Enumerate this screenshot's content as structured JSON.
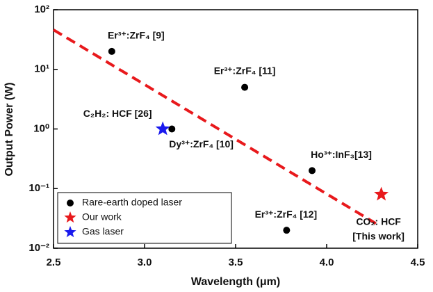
{
  "chart_data": {
    "type": "scatter",
    "x_label": "Wavelength (μm)",
    "y_label": "Output Power (W)",
    "xlim": [
      2.5,
      4.5
    ],
    "xticks": [
      2.5,
      {
        "value": 3,
        "label": "3.0"
      },
      3.5,
      {
        "value": 4,
        "label": "4.0"
      },
      4.5
    ],
    "ylim": [
      0.01,
      100
    ],
    "log_y": true,
    "yticks": [
      {
        "value": 0.01,
        "label": "10⁻²"
      },
      {
        "value": 0.1,
        "label": "10⁻¹"
      },
      {
        "value": 1,
        "label": "10⁰"
      },
      {
        "value": 10,
        "label": "10¹"
      },
      {
        "value": 100,
        "label": "10²"
      }
    ],
    "legend_position": "lower left",
    "series": [
      {
        "name": "Rare-earth doped laser",
        "color": "#000000",
        "marker": "circle",
        "x": [
          2.82,
          3.55,
          3.15,
          3.92,
          3.78
        ],
        "values": [
          20,
          5,
          1,
          0.2,
          0.02
        ],
        "point_labels": [
          "Er³⁺:ZrF₄ [9]",
          "Er³⁺:ZrF₄ [11]",
          "Dy³⁺:ZrF₄ [10]",
          "Ho³⁺:InF₃[13]",
          "Er³⁺:ZrF₄ [12]"
        ]
      },
      {
        "name": "Our work",
        "color": "#e8191c",
        "marker": "star",
        "x": [
          4.3
        ],
        "values": [
          0.08
        ],
        "point_labels": [
          [
            "CO₂: HCF",
            "[This work]"
          ]
        ]
      },
      {
        "name": "Gas laser",
        "color": "#1a1aee",
        "marker": "star",
        "x": [
          3.1
        ],
        "values": [
          1
        ],
        "point_labels": [
          "C₂H₂: HCF [26]"
        ]
      }
    ],
    "trend": {
      "color": "#e8191c",
      "x": [
        2.5,
        4.27
      ],
      "values": [
        46,
        0.026
      ]
    }
  }
}
